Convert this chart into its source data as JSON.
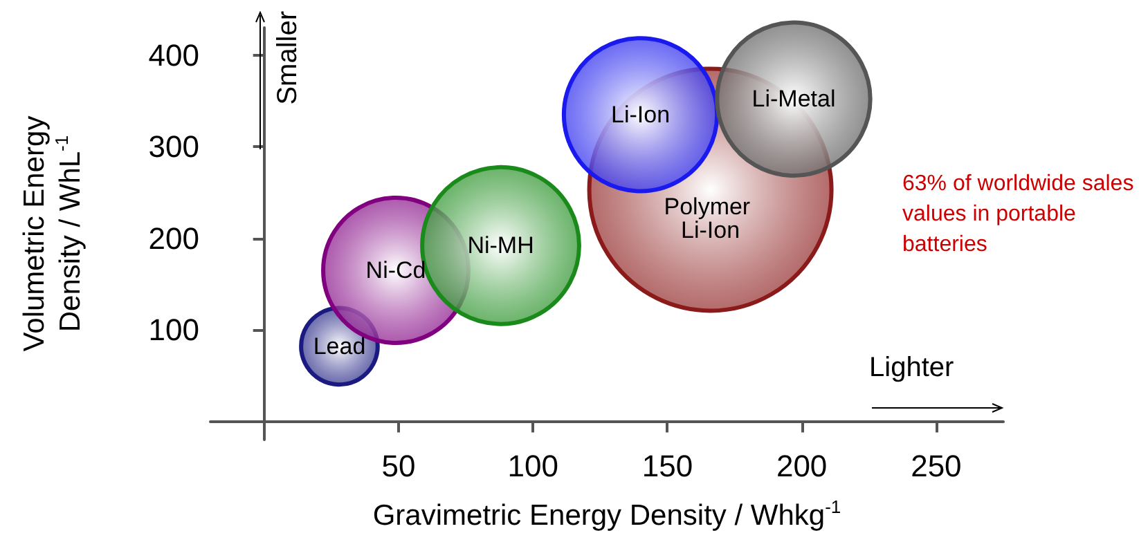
{
  "chart_data": {
    "type": "bubble",
    "xlabel": "Gravimetric Energy Density / Whkg$^{-1}$",
    "ylabel": "Volumetric Energy Density / WhL$^{-1}$",
    "annotations": [
      "Smaller",
      "Lighter",
      "63% of worldwide sales values in portable batteries"
    ],
    "series": [
      {
        "name": "Polymer Li-Ion",
        "color": "#8b1a1a",
        "x": [
          166
        ],
        "values": [
          253
        ],
        "sizes": [
          1
        ]
      },
      {
        "name": "Lead",
        "color": "#1a1a80",
        "x": [
          28
        ],
        "values": [
          82
        ],
        "sizes": [
          0.1
        ]
      },
      {
        "name": "Ni-Cd",
        "color": "#800080",
        "x": [
          49
        ],
        "values": [
          165
        ],
        "sizes": [
          0.36
        ]
      },
      {
        "name": "Ni-MH",
        "color": "#1a8a1a",
        "x": [
          88
        ],
        "values": [
          192
        ],
        "sizes": [
          0.42
        ]
      },
      {
        "name": "Li-Ion",
        "color": "#1a1aee",
        "x": [
          140
        ],
        "values": [
          335
        ],
        "sizes": [
          0.4
        ]
      },
      {
        "name": "Li-Metal",
        "color": "#555555",
        "x": [
          197
        ],
        "values": [
          352
        ],
        "sizes": [
          0.4
        ]
      }
    ],
    "xlim": [
      -20,
      275
    ],
    "ylim": [
      -20,
      430
    ],
    "xticks": [
      {
        "value": 0,
        "label": null
      },
      50,
      100,
      150,
      200,
      250
    ],
    "yticks": [
      {
        "value": 0,
        "label": null
      },
      100,
      200,
      300,
      400
    ],
    "grid": false,
    "legend": false,
    "marker": "circle"
  }
}
